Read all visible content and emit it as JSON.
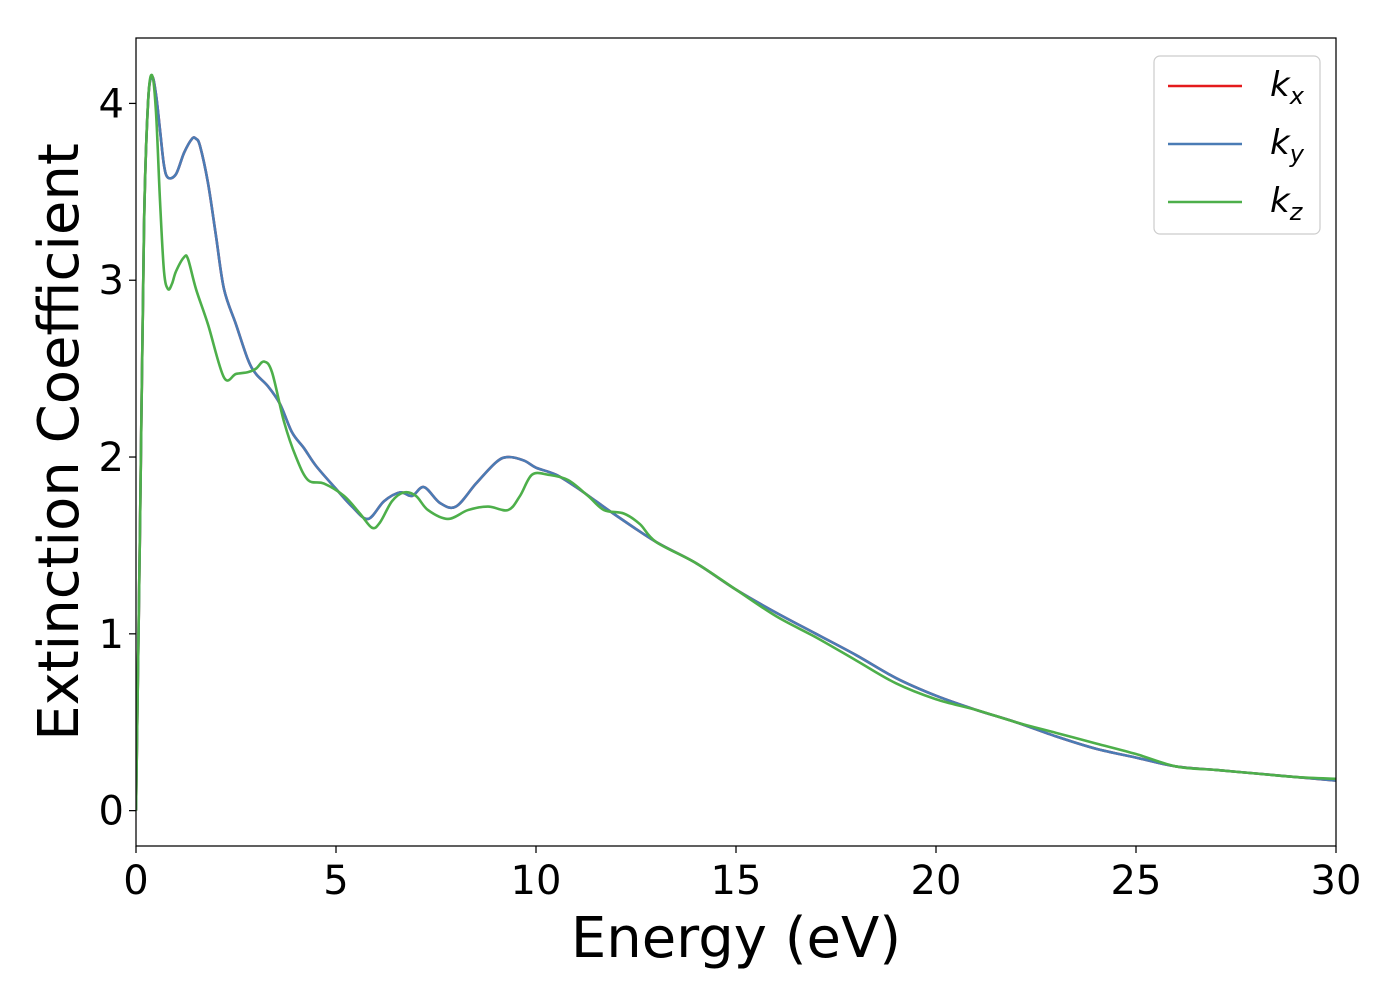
{
  "chart_data": {
    "type": "line",
    "xlabel": "Energy (eV)",
    "ylabel": "Extinction Coefficient",
    "xlim": [
      0,
      30
    ],
    "ylim": [
      -0.2,
      4.37
    ],
    "xticks": [
      0,
      5,
      10,
      15,
      20,
      25,
      30
    ],
    "xtick_labels": [
      "0",
      "5",
      "10",
      "15",
      "20",
      "25",
      "30"
    ],
    "yticks": [
      0,
      1,
      2,
      3,
      4
    ],
    "ytick_labels": [
      "0",
      "1",
      "2",
      "3",
      "4"
    ],
    "grid": false,
    "legend_position": "top-right",
    "series": [
      {
        "name": "k_x",
        "legend_base": "k",
        "legend_sub": "x",
        "color": "#e41a1c",
        "x": [
          0,
          0.1,
          0.2,
          0.3,
          0.4,
          0.5,
          0.6,
          0.7,
          0.8,
          1.0,
          1.2,
          1.4,
          1.5,
          1.6,
          1.8,
          2.0,
          2.2,
          2.5,
          2.8,
          3.0,
          3.3,
          3.6,
          3.9,
          4.2,
          4.5,
          5.0,
          5.4,
          5.8,
          6.2,
          6.6,
          6.9,
          7.2,
          7.6,
          8.0,
          8.5,
          9.0,
          9.3,
          9.7,
          10.0,
          10.5,
          11.0,
          11.5,
          12.0,
          13.0,
          14.0,
          15.0,
          16.0,
          17.0,
          18.0,
          19.0,
          20.0,
          21.0,
          22.0,
          23.0,
          24.0,
          25.0,
          26.0,
          27.0,
          28.0,
          29.0,
          30.0
        ],
        "y": [
          0.0,
          1.6,
          3.3,
          4.0,
          4.15,
          4.05,
          3.85,
          3.65,
          3.58,
          3.6,
          3.72,
          3.8,
          3.8,
          3.76,
          3.55,
          3.25,
          2.95,
          2.75,
          2.55,
          2.47,
          2.4,
          2.3,
          2.14,
          2.05,
          1.95,
          1.82,
          1.72,
          1.65,
          1.75,
          1.8,
          1.78,
          1.83,
          1.74,
          1.72,
          1.85,
          1.97,
          2.0,
          1.98,
          1.94,
          1.9,
          1.83,
          1.75,
          1.67,
          1.52,
          1.4,
          1.25,
          1.12,
          1.0,
          0.88,
          0.75,
          0.65,
          0.57,
          0.5,
          0.42,
          0.35,
          0.3,
          0.25,
          0.23,
          0.21,
          0.19,
          0.17
        ]
      },
      {
        "name": "k_y",
        "legend_base": "k",
        "legend_sub": "y",
        "color": "#4a7cb5",
        "x": [
          0,
          0.1,
          0.2,
          0.3,
          0.4,
          0.5,
          0.6,
          0.7,
          0.8,
          1.0,
          1.2,
          1.4,
          1.5,
          1.6,
          1.8,
          2.0,
          2.2,
          2.5,
          2.8,
          3.0,
          3.3,
          3.6,
          3.9,
          4.2,
          4.5,
          5.0,
          5.4,
          5.8,
          6.2,
          6.6,
          6.9,
          7.2,
          7.6,
          8.0,
          8.5,
          9.0,
          9.3,
          9.7,
          10.0,
          10.5,
          11.0,
          11.5,
          12.0,
          13.0,
          14.0,
          15.0,
          16.0,
          17.0,
          18.0,
          19.0,
          20.0,
          21.0,
          22.0,
          23.0,
          24.0,
          25.0,
          26.0,
          27.0,
          28.0,
          29.0,
          30.0
        ],
        "y": [
          0.0,
          1.6,
          3.3,
          4.0,
          4.15,
          4.05,
          3.85,
          3.65,
          3.58,
          3.6,
          3.72,
          3.8,
          3.8,
          3.76,
          3.55,
          3.25,
          2.95,
          2.75,
          2.55,
          2.47,
          2.4,
          2.3,
          2.14,
          2.05,
          1.95,
          1.82,
          1.72,
          1.65,
          1.75,
          1.8,
          1.78,
          1.83,
          1.74,
          1.72,
          1.85,
          1.97,
          2.0,
          1.98,
          1.94,
          1.9,
          1.83,
          1.75,
          1.67,
          1.52,
          1.4,
          1.25,
          1.12,
          1.0,
          0.88,
          0.75,
          0.65,
          0.57,
          0.5,
          0.42,
          0.35,
          0.3,
          0.25,
          0.23,
          0.21,
          0.19,
          0.17
        ]
      },
      {
        "name": "k_z",
        "legend_base": "k",
        "legend_sub": "z",
        "color": "#4daf4a",
        "x": [
          0,
          0.1,
          0.2,
          0.3,
          0.4,
          0.5,
          0.6,
          0.7,
          0.8,
          0.9,
          1.0,
          1.2,
          1.3,
          1.5,
          1.8,
          2.2,
          2.5,
          2.8,
          3.0,
          3.2,
          3.4,
          3.7,
          4.0,
          4.3,
          4.7,
          5.2,
          5.6,
          5.9,
          6.1,
          6.4,
          6.7,
          7.0,
          7.3,
          7.8,
          8.3,
          8.8,
          9.3,
          9.6,
          9.9,
          10.3,
          10.8,
          11.3,
          11.7,
          12.2,
          12.6,
          13.0,
          14.0,
          15.0,
          16.0,
          17.0,
          18.0,
          19.0,
          20.0,
          21.0,
          22.0,
          23.0,
          24.0,
          25.0,
          26.0,
          27.0,
          28.0,
          29.0,
          30.0
        ],
        "y": [
          0.0,
          1.6,
          3.3,
          4.0,
          4.16,
          3.95,
          3.45,
          3.05,
          2.95,
          2.98,
          3.05,
          3.13,
          3.12,
          2.95,
          2.75,
          2.45,
          2.47,
          2.48,
          2.5,
          2.54,
          2.48,
          2.2,
          2.0,
          1.87,
          1.85,
          1.78,
          1.68,
          1.6,
          1.63,
          1.75,
          1.8,
          1.78,
          1.7,
          1.65,
          1.7,
          1.72,
          1.7,
          1.78,
          1.9,
          1.9,
          1.87,
          1.78,
          1.7,
          1.68,
          1.62,
          1.52,
          1.4,
          1.25,
          1.1,
          0.98,
          0.85,
          0.72,
          0.63,
          0.57,
          0.5,
          0.44,
          0.38,
          0.32,
          0.25,
          0.23,
          0.21,
          0.19,
          0.18
        ]
      }
    ]
  }
}
